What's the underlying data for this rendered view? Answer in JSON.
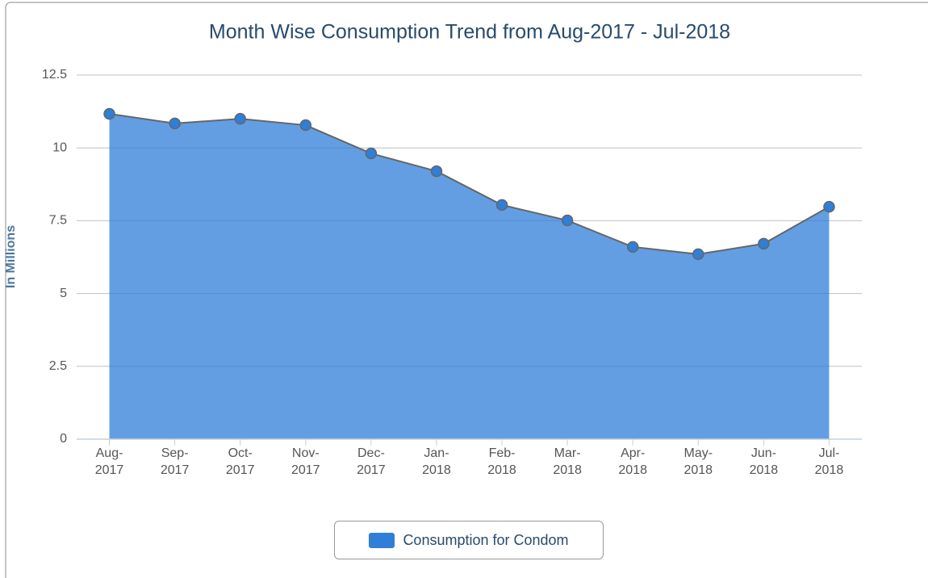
{
  "chart_data": {
    "type": "area",
    "title": "Month Wise Consumption Trend from Aug-2017 - Jul-2018",
    "y_label": "In Millions",
    "categories": [
      "Aug-2017",
      "Sep-2017",
      "Oct-2017",
      "Nov-2017",
      "Dec-2017",
      "Jan-2018",
      "Feb-2018",
      "Mar-2018",
      "Apr-2018",
      "May-2018",
      "Jun-2018",
      "Jul-2018"
    ],
    "series": [
      {
        "name": "Consumption for Condom",
        "color": "#2f7ed8",
        "values": [
          11.17,
          10.84,
          11.0,
          10.78,
          9.81,
          9.2,
          8.04,
          7.51,
          6.6,
          6.35,
          6.71,
          7.98
        ]
      }
    ],
    "ylim": [
      0,
      12.5
    ],
    "yticks": [
      0,
      2.5,
      5,
      7.5,
      10,
      12.5
    ],
    "grid": true,
    "legend": "bottom"
  }
}
